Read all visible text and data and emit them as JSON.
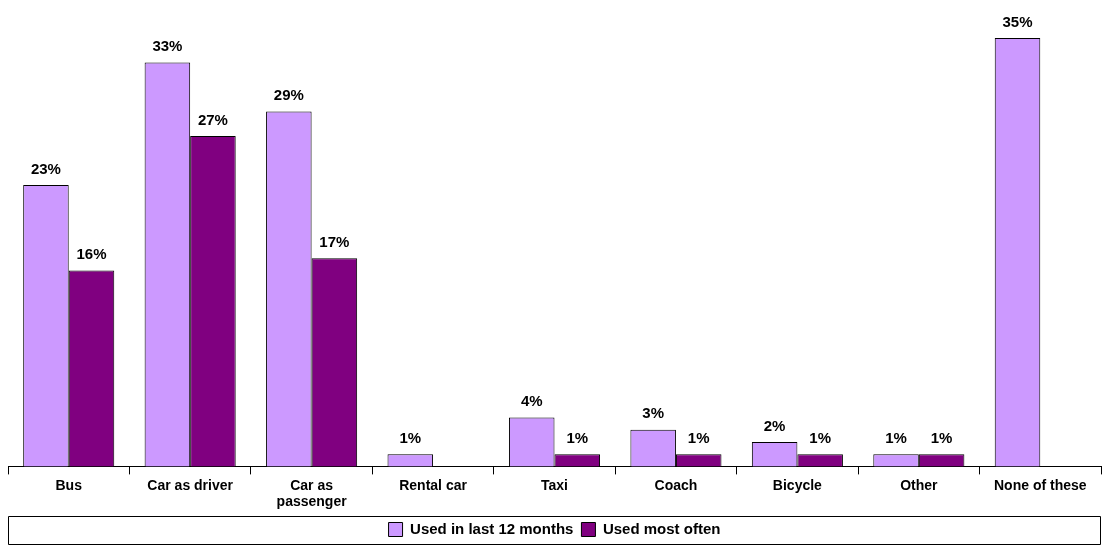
{
  "chart_data": {
    "type": "bar",
    "categories": [
      "Bus",
      "Car as driver",
      "Car as passenger",
      "Rental car",
      "Taxi",
      "Coach",
      "Bicycle",
      "Other",
      "None of these"
    ],
    "series": [
      {
        "name": "Used in last 12 months",
        "color": "#cc99ff",
        "values": [
          23,
          33,
          29,
          1,
          4,
          3,
          2,
          1,
          35
        ],
        "value_labels": [
          "23%",
          "33%",
          "29%",
          "1%",
          "4%",
          "3%",
          "2%",
          "1%",
          "35%"
        ]
      },
      {
        "name": "Used most often",
        "color": "#800080",
        "values": [
          16,
          27,
          17,
          null,
          1,
          1,
          1,
          1,
          null
        ],
        "value_labels": [
          "16%",
          "27%",
          "17%",
          null,
          "1%",
          "1%",
          "1%",
          "1%",
          null
        ]
      }
    ],
    "legend": "bottom",
    "tick_labels": "x",
    "grid": false
  }
}
